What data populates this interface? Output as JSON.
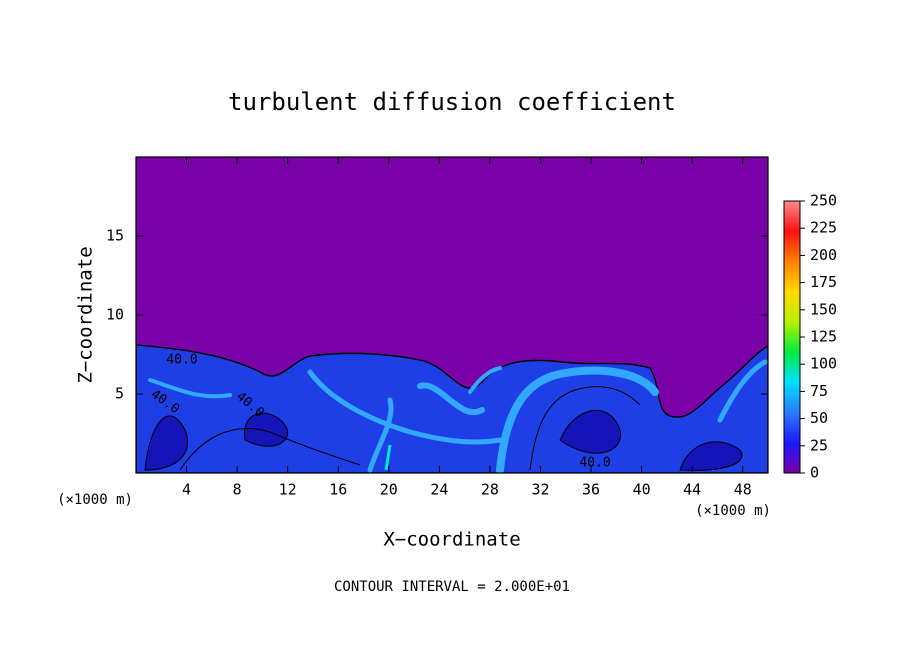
{
  "chart_data": {
    "type": "contour",
    "title": "turbulent diffusion coefficient",
    "x_label": "X−coordinate",
    "y_label": "Z−coordinate",
    "x_unit_left": "(×1000 m)",
    "x_unit_right": "(×1000 m)",
    "footer": "CONTOUR INTERVAL = 2.000E+01",
    "xlim": [
      0,
      50
    ],
    "xticks": [
      4,
      8,
      12,
      16,
      20,
      24,
      28,
      32,
      36,
      40,
      44,
      48
    ],
    "ylim": [
      0,
      20
    ],
    "yticks": [
      5,
      10,
      15
    ],
    "contour_labels": [
      "40.0",
      "40.0",
      "40.0",
      "40.0"
    ],
    "colorbar": {
      "lim": [
        0,
        250
      ],
      "ticks": [
        0,
        25,
        50,
        75,
        100,
        125,
        150,
        175,
        200,
        225,
        250
      ],
      "colormap": [
        "#7a00a8",
        "#1a1aff",
        "#2a7bff",
        "#00e0ff",
        "#00ee40",
        "#b8f000",
        "#ffd800",
        "#ff8000",
        "#ff1010",
        "#ff8a8a"
      ]
    }
  }
}
